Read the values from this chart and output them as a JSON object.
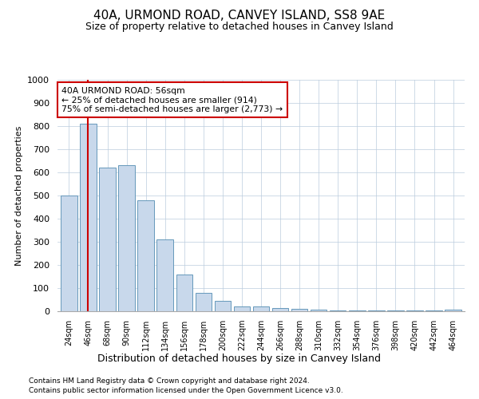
{
  "title": "40A, URMOND ROAD, CANVEY ISLAND, SS8 9AE",
  "subtitle": "Size of property relative to detached houses in Canvey Island",
  "xlabel": "Distribution of detached houses by size in Canvey Island",
  "ylabel": "Number of detached properties",
  "footnote1": "Contains HM Land Registry data © Crown copyright and database right 2024.",
  "footnote2": "Contains public sector information licensed under the Open Government Licence v3.0.",
  "annotation_title": "40A URMOND ROAD: 56sqm",
  "annotation_line1": "← 25% of detached houses are smaller (914)",
  "annotation_line2": "75% of semi-detached houses are larger (2,773) →",
  "bar_color": "#c8d8eb",
  "bar_edge_color": "#6699bb",
  "vline_color": "#cc0000",
  "annotation_box_color": "#ffffff",
  "annotation_box_edge": "#cc0000",
  "background_color": "#ffffff",
  "grid_color": "#bbccdd",
  "categories": [
    "24sqm",
    "46sqm",
    "68sqm",
    "90sqm",
    "112sqm",
    "134sqm",
    "156sqm",
    "178sqm",
    "200sqm",
    "222sqm",
    "244sqm",
    "266sqm",
    "288sqm",
    "310sqm",
    "332sqm",
    "354sqm",
    "376sqm",
    "398sqm",
    "420sqm",
    "442sqm",
    "464sqm"
  ],
  "values": [
    500,
    810,
    620,
    630,
    480,
    310,
    160,
    80,
    45,
    22,
    20,
    15,
    10,
    8,
    5,
    4,
    3,
    3,
    2,
    2,
    8
  ],
  "ylim": [
    0,
    1000
  ],
  "yticks": [
    0,
    100,
    200,
    300,
    400,
    500,
    600,
    700,
    800,
    900,
    1000
  ],
  "vline_x": 1.0,
  "figsize": [
    6.0,
    5.0
  ],
  "dpi": 100
}
